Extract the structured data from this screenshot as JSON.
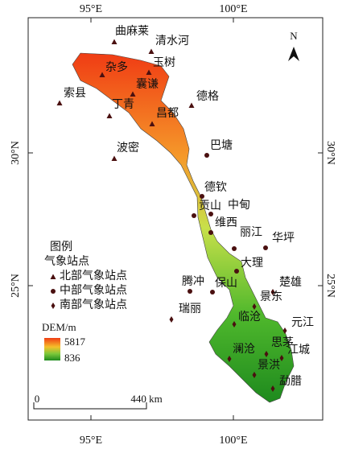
{
  "axes": {
    "top": [
      "95°E",
      "100°E"
    ],
    "bottom": [
      "95°E",
      "100°E"
    ],
    "left": [
      "30°N",
      "25°N"
    ],
    "right": [
      "30°N",
      "25°N"
    ]
  },
  "north_arrow": "N",
  "station_groups": [
    {
      "label": "北部气象站点",
      "stations": [
        "曲麻莱",
        "清水河",
        "杂多",
        "玉树",
        "囊谦",
        "索县",
        "丁青",
        "昌都",
        "德格",
        "波密"
      ]
    },
    {
      "label": "中部气象站点",
      "stations": [
        "巴塘",
        "德钦",
        "中甸",
        "贡山",
        "维西",
        "丽江",
        "华坪",
        "大理",
        "腾冲",
        "保山"
      ]
    },
    {
      "label": "南部气象站点",
      "stations": [
        "楚雄",
        "景东",
        "瑞丽",
        "临沧",
        "元江",
        "澜沧",
        "思茅",
        "江城",
        "景洪",
        "勐腊"
      ]
    }
  ],
  "legend": {
    "title": "图例",
    "subtitle": "气象站点",
    "dem_title": "DEM/m",
    "dem_max": "5817",
    "dem_min": "836"
  },
  "scale_bar": {
    "start": "0",
    "end": "440 km"
  }
}
